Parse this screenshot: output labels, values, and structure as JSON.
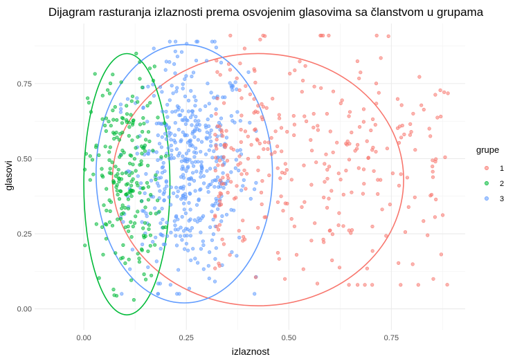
{
  "chart_data": {
    "type": "scatter",
    "title": "Dijagram rasturanja izlaznosti prema osvojenim glasovima sa članstvom u grupama",
    "xlabel": "izlaznost",
    "ylabel": "glasovi",
    "xlim": [
      -0.12,
      0.93
    ],
    "ylim": [
      -0.07,
      0.95
    ],
    "x_ticks": [
      "0.00",
      "0.25",
      "0.50",
      "0.75"
    ],
    "x_tick_values": [
      0,
      0.25,
      0.5,
      0.75
    ],
    "y_ticks": [
      "0.00",
      "0.25",
      "0.50",
      "0.75"
    ],
    "y_tick_values": [
      0,
      0.25,
      0.5,
      0.75
    ],
    "grid": true,
    "legend": {
      "title": "grupe",
      "position": "right"
    },
    "series": [
      {
        "name": "1",
        "color": "#F8766D",
        "n_points": 320,
        "x_range": [
          0.32,
          0.89
        ],
        "y_range": [
          0.08,
          0.91
        ],
        "ellipse": {
          "x_min": 0.07,
          "x_max": 0.78,
          "y_min": 0.01,
          "y_max": 0.85
        }
      },
      {
        "name": "2",
        "color": "#00BA38",
        "n_points": 230,
        "x_range": [
          0.0,
          0.2
        ],
        "y_range": [
          0.03,
          0.85
        ],
        "ellipse": {
          "x_min": 0.0,
          "x_max": 0.21,
          "y_min": -0.02,
          "y_max": 0.85
        }
      },
      {
        "name": "3",
        "color": "#619CFF",
        "n_points": 480,
        "x_range": [
          0.09,
          0.42
        ],
        "y_range": [
          0.05,
          0.89
        ],
        "ellipse": {
          "x_min": 0.03,
          "x_max": 0.46,
          "y_min": 0.02,
          "y_max": 0.88
        }
      }
    ]
  }
}
